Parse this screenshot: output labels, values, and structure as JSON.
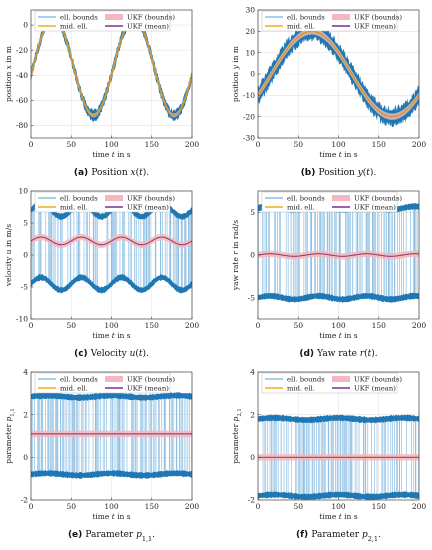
{
  "figure": {
    "legend_labels": {
      "ell_bounds": "ell. bounds",
      "mid_ell": "mid. ell.",
      "ukf_bounds": "UKF (bounds)",
      "ukf_mean": "UKF (mean)"
    },
    "colors": {
      "ell_bounds": "#1f77b4",
      "ell_bounds_light": "#8dbfe3",
      "mid_ell": "#edb120",
      "ukf_bounds": "#f4b6c2",
      "ukf_mean": "#7e2f8e",
      "grid": "#e3e3e3",
      "axis": "#444444"
    }
  },
  "chart_data": [
    {
      "id": "a",
      "type": "line",
      "title": "",
      "xlabel": "time t in s",
      "ylabel": "position x in m",
      "xlim": [
        0,
        200
      ],
      "ylim": [
        -90,
        12
      ],
      "xticks": [
        0,
        50,
        100,
        150,
        200
      ],
      "yticks": [
        0,
        -20,
        -40,
        -60,
        -80
      ],
      "grid": true,
      "legend": "top-center",
      "signal": {
        "kind": "sine",
        "offset": -33,
        "amplitude": 39,
        "period": 100,
        "phase_deg": 10,
        "ell_halfwidth": 3,
        "ukf_halfwidth": 1.5
      },
      "caption_label": "(a)",
      "caption_text": "Position x(t)."
    },
    {
      "id": "b",
      "type": "line",
      "title": "",
      "xlabel": "time t in s",
      "ylabel": "position y in m",
      "xlim": [
        0,
        200
      ],
      "ylim": [
        -30,
        30
      ],
      "xticks": [
        0,
        50,
        100,
        150,
        200
      ],
      "yticks": [
        30,
        20,
        10,
        0,
        -10,
        -20,
        -30
      ],
      "grid": true,
      "legend": "top-center",
      "signal": {
        "kind": "sine",
        "offset": 0,
        "amplitude": 20,
        "period": 200,
        "phase_deg": 30,
        "ell_halfwidth": 3,
        "ukf_halfwidth": 1.5
      },
      "caption_label": "(b)",
      "caption_text": "Position y(t)."
    },
    {
      "id": "c",
      "type": "area",
      "title": "",
      "xlabel": "time t in s",
      "ylabel": "velocity u in m/s",
      "xlim": [
        0,
        200
      ],
      "ylim": [
        -10,
        10
      ],
      "xticks": [
        0,
        50,
        100,
        150,
        200
      ],
      "yticks": [
        10,
        5,
        0,
        -5,
        -10
      ],
      "grid": true,
      "legend": "top-center",
      "upper_bound": {
        "mean": 7.0,
        "amp": 1.0,
        "period": 50
      },
      "lower_bound": {
        "mean": -4.5,
        "amp": 1.0,
        "period": 50
      },
      "mean_signal": {
        "mean": 2.2,
        "amp": 0.6,
        "period": 50
      },
      "caption_label": "(c)",
      "caption_text": "Velocity u(t)."
    },
    {
      "id": "d",
      "type": "area",
      "title": "",
      "xlabel": "time t in s",
      "ylabel": "yaw rate r in rad/s",
      "xlim": [
        0,
        200
      ],
      "ylim": [
        -7.5,
        7.5
      ],
      "xticks": [
        0,
        50,
        100,
        150,
        200
      ],
      "yticks": [
        5,
        0,
        -5
      ],
      "grid": true,
      "legend": "top-center",
      "upper_bound": {
        "mean": 5.5,
        "amp": 0.2,
        "period": 60
      },
      "lower_bound": {
        "mean": -5.0,
        "amp": 0.2,
        "period": 60
      },
      "mean_signal": {
        "mean": 0.0,
        "amp": 0.15,
        "period": 60
      },
      "caption_label": "(d)",
      "caption_text": "Yaw rate r(t)."
    },
    {
      "id": "e",
      "type": "area",
      "title": "",
      "xlabel": "time t in s",
      "ylabel": "parameter p1,1",
      "xlim": [
        0,
        200
      ],
      "ylim": [
        -2,
        4
      ],
      "xticks": [
        0,
        50,
        100,
        150,
        200
      ],
      "yticks": [
        4,
        2,
        0,
        -2
      ],
      "grid": true,
      "legend": "top-center",
      "upper_bound": {
        "mean": 2.85,
        "amp": 0.05,
        "period": 80
      },
      "lower_bound": {
        "mean": -0.8,
        "amp": 0.05,
        "period": 80
      },
      "mean_signal": {
        "mean": 1.1,
        "amp": 0.0,
        "period": 80
      },
      "caption_label": "(e)",
      "caption_text": "Parameter p1,1."
    },
    {
      "id": "f",
      "type": "area",
      "title": "",
      "xlabel": "time t in s",
      "ylabel": "parameter p2,1",
      "xlim": [
        0,
        200
      ],
      "ylim": [
        -2,
        4
      ],
      "xticks": [
        0,
        50,
        100,
        150,
        200
      ],
      "yticks": [
        4,
        2,
        0,
        -2
      ],
      "grid": true,
      "legend": "top-center",
      "upper_bound": {
        "mean": 1.8,
        "amp": 0.05,
        "period": 80
      },
      "lower_bound": {
        "mean": -1.8,
        "amp": 0.05,
        "period": 80
      },
      "mean_signal": {
        "mean": 0.0,
        "amp": 0.0,
        "period": 80
      },
      "caption_label": "(f)",
      "caption_text": "Parameter p2,1."
    }
  ]
}
